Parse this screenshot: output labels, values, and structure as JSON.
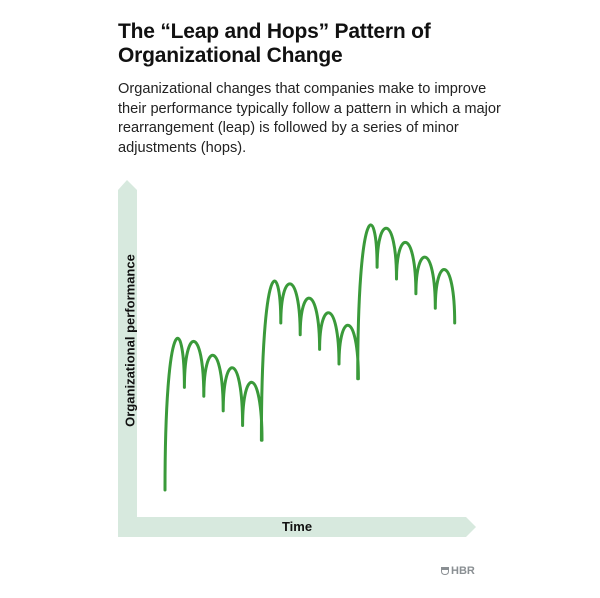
{
  "header": {
    "title": "The “Leap and Hops” Pattern of Organizational Change",
    "subtitle": "Organizational changes that companies make to improve their performance typically follow a pattern in which a major rearrangement (leap) is followed by a series of minor adjustments (hops)."
  },
  "footer": {
    "brand": "HBR",
    "icon": "shield-icon"
  },
  "colors": {
    "line": "#3a9a3a",
    "axis": "#d7e9de",
    "text": "#111111",
    "brand": "#8a8f93"
  },
  "chart_data": {
    "type": "line",
    "title": "The “Leap and Hops” Pattern of Organizational Change",
    "xlabel": "Time",
    "ylabel": "Organizational performance",
    "grid": false,
    "legend": null,
    "axis_ticks": false,
    "description": "Conceptual diagram: three leaps, each followed by five hops (arches) of successively lower peaks and troughs; each new leap starts higher than the previous.",
    "series": [
      {
        "name": "Organizational performance",
        "segments": [
          {
            "leap_start": {
              "x": 0.0,
              "y": 0.0
            },
            "hops": [
              {
                "peak": 0.58,
                "trough": 0.35
              },
              {
                "peak": 0.53,
                "trough": 0.32
              },
              {
                "peak": 0.48,
                "trough": 0.27
              },
              {
                "peak": 0.44,
                "trough": 0.22
              },
              {
                "peak": 0.39,
                "trough": 0.17
              }
            ]
          },
          {
            "leap_start": {
              "x": 0.33,
              "y": 0.17
            },
            "hops": [
              {
                "peak": 0.77,
                "trough": 0.57
              },
              {
                "peak": 0.72,
                "trough": 0.53
              },
              {
                "peak": 0.67,
                "trough": 0.48
              },
              {
                "peak": 0.62,
                "trough": 0.43
              },
              {
                "peak": 0.58,
                "trough": 0.38
              }
            ]
          },
          {
            "leap_start": {
              "x": 0.66,
              "y": 0.38
            },
            "hops": [
              {
                "peak": 0.96,
                "trough": 0.76
              },
              {
                "peak": 0.91,
                "trough": 0.72
              },
              {
                "peak": 0.86,
                "trough": 0.67
              },
              {
                "peak": 0.81,
                "trough": 0.62
              },
              {
                "peak": 0.77,
                "trough": 0.57
              }
            ]
          }
        ]
      }
    ]
  }
}
